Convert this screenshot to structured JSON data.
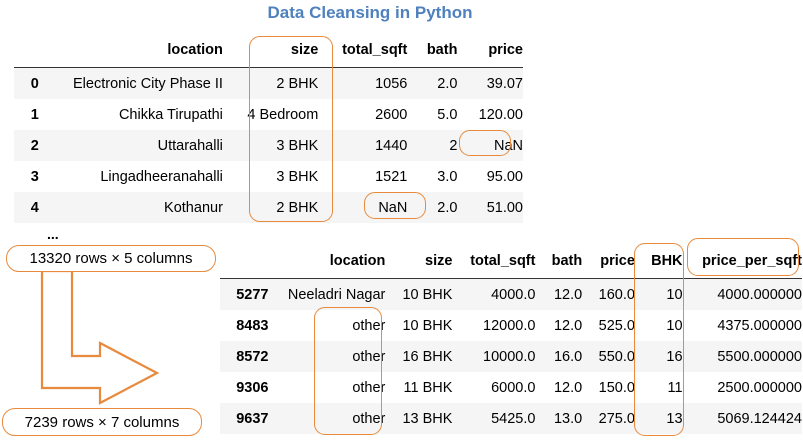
{
  "title": "Data Cleansing in Python",
  "table1": {
    "columns": [
      "location",
      "size",
      "total_sqft",
      "bath",
      "price"
    ],
    "rows": [
      {
        "index": "0",
        "location": "Electronic City Phase II",
        "size": "2 BHK",
        "total_sqft": "1056",
        "bath": "2.0",
        "price": "39.07"
      },
      {
        "index": "1",
        "location": "Chikka Tirupathi",
        "size": "4 Bedroom",
        "total_sqft": "2600",
        "bath": "5.0",
        "price": "120.00"
      },
      {
        "index": "2",
        "location": "Uttarahalli",
        "size": "3 BHK",
        "total_sqft": "1440",
        "bath": "2",
        "price": "NaN"
      },
      {
        "index": "3",
        "location": "Lingadheeranahalli",
        "size": "3 BHK",
        "total_sqft": "1521",
        "bath": "3.0",
        "price": "95.00"
      },
      {
        "index": "4",
        "location": "Kothanur",
        "size": "2 BHK",
        "total_sqft": "NaN",
        "bath": "2.0",
        "price": "51.00"
      }
    ],
    "ellipsis": "...",
    "shape": "13320 rows × 5 columns"
  },
  "table2": {
    "columns": [
      "location",
      "size",
      "total_sqft",
      "bath",
      "price",
      "BHK",
      "price_per_sqft"
    ],
    "rows": [
      {
        "index": "5277",
        "location": "Neeladri Nagar",
        "size": "10 BHK",
        "total_sqft": "4000.0",
        "bath": "12.0",
        "price": "160.0",
        "bhk": "10",
        "price_per_sqft": "4000.000000"
      },
      {
        "index": "8483",
        "location": "other",
        "size": "10 BHK",
        "total_sqft": "12000.0",
        "bath": "12.0",
        "price": "525.0",
        "bhk": "10",
        "price_per_sqft": "4375.000000"
      },
      {
        "index": "8572",
        "location": "other",
        "size": "16 BHK",
        "total_sqft": "10000.0",
        "bath": "16.0",
        "price": "550.0",
        "bhk": "16",
        "price_per_sqft": "5500.000000"
      },
      {
        "index": "9306",
        "location": "other",
        "size": "11 BHK",
        "total_sqft": "6000.0",
        "bath": "12.0",
        "price": "150.0",
        "bhk": "11",
        "price_per_sqft": "2500.000000"
      },
      {
        "index": "9637",
        "location": "other",
        "size": "13 BHK",
        "total_sqft": "5425.0",
        "bath": "13.0",
        "price": "275.0",
        "bhk": "13",
        "price_per_sqft": "5069.124424"
      }
    ],
    "shape": "7239 rows × 7 columns"
  },
  "colors": {
    "title": "#4f81bd",
    "highlight": "#e88a3d",
    "row_stripe": "#f5f5f5"
  }
}
